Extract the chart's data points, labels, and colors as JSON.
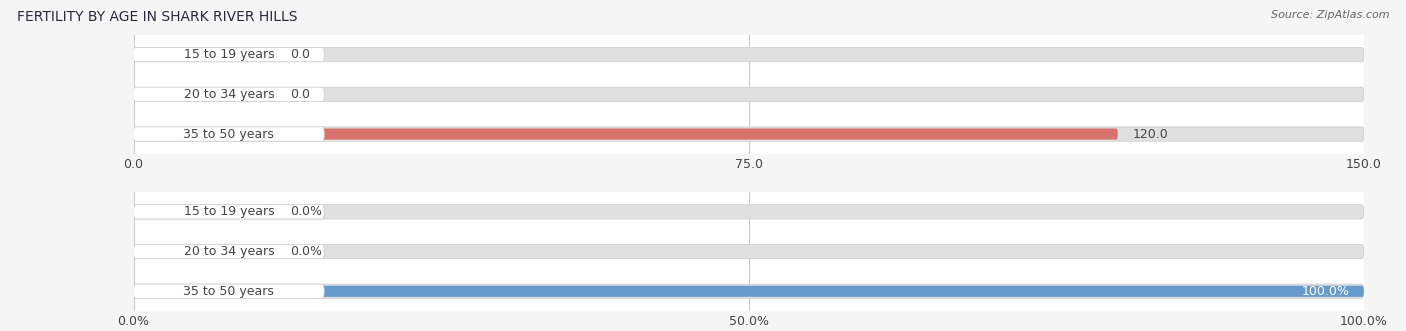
{
  "title": "FERTILITY BY AGE IN SHARK RIVER HILLS",
  "source": "Source: ZipAtlas.com",
  "top_chart": {
    "categories": [
      "15 to 19 years",
      "20 to 34 years",
      "35 to 50 years"
    ],
    "values": [
      0.0,
      0.0,
      120.0
    ],
    "bar_color": "#d9736e",
    "bar_color_stub": "#e8aaaa",
    "xlim": [
      0,
      150
    ],
    "xticks": [
      0.0,
      75.0,
      150.0
    ],
    "xtick_labels": [
      "0.0",
      "75.0",
      "150.0"
    ],
    "value_labels": [
      "0.0",
      "0.0",
      "120.0"
    ]
  },
  "bottom_chart": {
    "categories": [
      "15 to 19 years",
      "20 to 34 years",
      "35 to 50 years"
    ],
    "values": [
      0.0,
      0.0,
      100.0
    ],
    "bar_color": "#6699cc",
    "bar_color_stub": "#aaccee",
    "xlim": [
      0,
      100
    ],
    "xticks": [
      0.0,
      50.0,
      100.0
    ],
    "xtick_labels": [
      "0.0%",
      "50.0%",
      "100.0%"
    ],
    "value_labels": [
      "0.0%",
      "0.0%",
      "100.0%"
    ]
  },
  "fig_bg_color": "#f5f5f5",
  "chart_bg_color": "#ffffff",
  "bar_track_color": "#e0e0e0",
  "label_color": "#444444",
  "label_fontsize": 9,
  "title_fontsize": 10,
  "source_fontsize": 8
}
